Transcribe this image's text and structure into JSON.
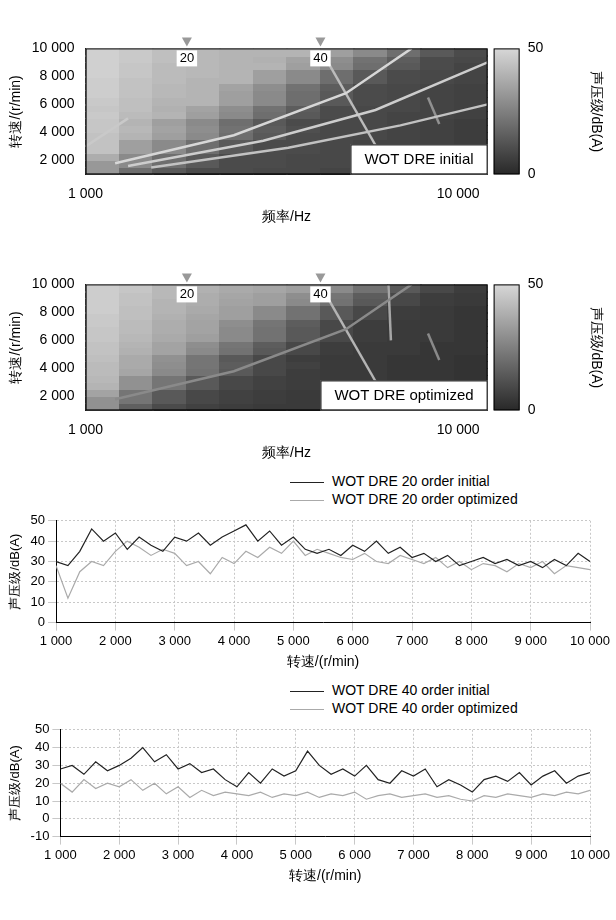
{
  "chart_data": [
    {
      "type": "heatmap",
      "annotation": "WOT DRE initial",
      "x_label": "频率/Hz",
      "y_label": "转速/(r/min)",
      "log": "x",
      "grid": false,
      "xlim": [
        1000,
        12000
      ],
      "xticks": [
        {
          "value": 1000,
          "label": "1 000"
        },
        {
          "value": 10000,
          "label": "10 000"
        }
      ],
      "ylim": [
        1000,
        10000
      ],
      "yticks": [
        {
          "value": 2000,
          "label": "2 000"
        },
        {
          "value": 4000,
          "label": "4 000"
        },
        {
          "value": 6000,
          "label": "6 000"
        },
        {
          "value": 8000,
          "label": "8 000"
        },
        {
          "value": 10000,
          "label": "10 000"
        }
      ],
      "cursors": [
        {
          "value": 1870,
          "label": "20"
        },
        {
          "value": 4270,
          "label": "40"
        }
      ],
      "colorbar": {
        "label": "声压级/dB(A)",
        "range": [
          0,
          50
        ],
        "ticks": [
          0,
          50
        ]
      },
      "freq_edges": [
        1000,
        1230,
        1513,
        1862,
        2290,
        2817,
        3464,
        4261,
        5241,
        6447,
        7930,
        9755,
        12000
      ],
      "rpm_edges": [
        1000,
        1500,
        2000,
        2500,
        3000,
        3500,
        4000,
        4500,
        5000,
        5500,
        6000,
        6500,
        7000,
        7500,
        8000,
        8500,
        9000,
        9500,
        10000
      ],
      "cells": [
        [
          32,
          20,
          14,
          10,
          10,
          9,
          9,
          8,
          8,
          7,
          7,
          6
        ],
        [
          32,
          28,
          20,
          14,
          10,
          10,
          9,
          9,
          8,
          8,
          7,
          6
        ],
        [
          38,
          28,
          20,
          14,
          10,
          10,
          9,
          9,
          8,
          7,
          7,
          6
        ],
        [
          44,
          34,
          28,
          20,
          14,
          10,
          10,
          9,
          8,
          8,
          7,
          6
        ],
        [
          44,
          34,
          28,
          20,
          14,
          10,
          10,
          9,
          8,
          8,
          7,
          6
        ],
        [
          44,
          40,
          34,
          28,
          20,
          14,
          10,
          9,
          9,
          8,
          7,
          6
        ],
        [
          45,
          41,
          35,
          29,
          21,
          15,
          11,
          9,
          9,
          8,
          7,
          6
        ],
        [
          45,
          40,
          34,
          28,
          20,
          14,
          10,
          9,
          9,
          8,
          7,
          6
        ],
        [
          46,
          42,
          40,
          34,
          28,
          20,
          14,
          10,
          9,
          8,
          8,
          7
        ],
        [
          45,
          43,
          39,
          35,
          29,
          21,
          15,
          10,
          9,
          9,
          8,
          7
        ],
        [
          46,
          43,
          40,
          40,
          34,
          28,
          20,
          14,
          10,
          9,
          8,
          7
        ],
        [
          47,
          44,
          41,
          40,
          34,
          28,
          20,
          14,
          10,
          9,
          8,
          7
        ],
        [
          47,
          44,
          41,
          40,
          35,
          29,
          21,
          15,
          10,
          9,
          8,
          7
        ],
        [
          47,
          44,
          42,
          40,
          40,
          34,
          28,
          20,
          14,
          10,
          9,
          8
        ],
        [
          48,
          45,
          42,
          41,
          40,
          34,
          28,
          20,
          14,
          10,
          9,
          8
        ],
        [
          48,
          45,
          42,
          41,
          40,
          40,
          34,
          28,
          20,
          14,
          10,
          8
        ],
        [
          48,
          46,
          43,
          41,
          40,
          39,
          35,
          29,
          21,
          15,
          10,
          9
        ],
        [
          48,
          46,
          43,
          41,
          40,
          40,
          40,
          34,
          28,
          20,
          14,
          10
        ]
      ],
      "order_lines": [
        {
          "x": [
            1200,
            2500,
            5000,
            7500
          ],
          "y": [
            1800,
            3800,
            6800,
            10000
          ],
          "level": 50
        },
        {
          "x": [
            1300,
            3000,
            6000,
            12000
          ],
          "y": [
            1600,
            3400,
            5600,
            9000
          ],
          "level": 47
        },
        {
          "x": [
            1500,
            3500,
            7000,
            12000
          ],
          "y": [
            1500,
            2900,
            4500,
            6000
          ],
          "level": 44
        },
        {
          "x": [
            1000,
            1300
          ],
          "y": [
            3000,
            5000
          ],
          "level": 46
        },
        {
          "x": [
            4300,
            6300
          ],
          "y": [
            9800,
            2100
          ],
          "level": 42
        },
        {
          "x": [
            8300,
            8900
          ],
          "y": [
            6500,
            4600
          ],
          "level": 30
        }
      ]
    },
    {
      "type": "heatmap",
      "annotation": "WOT DRE optimized",
      "x_label": "频率/Hz",
      "y_label": "转速/(r/min)",
      "log": "x",
      "grid": false,
      "xlim": [
        1000,
        12000
      ],
      "xticks": [
        {
          "value": 1000,
          "label": "1 000"
        },
        {
          "value": 10000,
          "label": "10 000"
        }
      ],
      "ylim": [
        1000,
        10000
      ],
      "yticks": [
        {
          "value": 2000,
          "label": "2 000"
        },
        {
          "value": 4000,
          "label": "4 000"
        },
        {
          "value": 6000,
          "label": "6 000"
        },
        {
          "value": 8000,
          "label": "8 000"
        },
        {
          "value": 10000,
          "label": "10 000"
        }
      ],
      "cursors": [
        {
          "value": 1870,
          "label": "20"
        },
        {
          "value": 4270,
          "label": "40"
        }
      ],
      "colorbar": {
        "label": "声压级/dB(A)",
        "range": [
          0,
          50
        ],
        "ticks": [
          0,
          50
        ]
      },
      "freq_edges": [
        1000,
        1230,
        1513,
        1862,
        2290,
        2817,
        3464,
        4261,
        5241,
        6447,
        7930,
        9755,
        12000
      ],
      "rpm_edges": [
        1000,
        1500,
        2000,
        2500,
        3000,
        3500,
        4000,
        4500,
        5000,
        5500,
        6000,
        6500,
        7000,
        7500,
        8000,
        8500,
        9000,
        9500,
        10000
      ],
      "cells": [
        [
          30,
          16,
          10,
          7,
          6,
          5,
          5,
          5,
          4,
          4,
          4,
          3
        ],
        [
          30,
          22,
          14,
          9,
          7,
          6,
          5,
          5,
          4,
          4,
          4,
          3
        ],
        [
          35,
          22,
          14,
          9,
          7,
          6,
          5,
          5,
          4,
          4,
          4,
          3
        ],
        [
          40,
          30,
          22,
          14,
          9,
          7,
          6,
          5,
          5,
          4,
          4,
          3
        ],
        [
          41,
          30,
          22,
          14,
          9,
          7,
          6,
          5,
          5,
          4,
          4,
          3
        ],
        [
          42,
          36,
          28,
          21,
          14,
          9,
          6,
          5,
          5,
          4,
          4,
          3
        ],
        [
          42,
          37,
          29,
          22,
          15,
          9,
          7,
          5,
          5,
          4,
          4,
          3
        ],
        [
          43,
          37,
          30,
          22,
          14,
          9,
          6,
          5,
          5,
          4,
          4,
          3
        ],
        [
          44,
          39,
          35,
          28,
          21,
          14,
          9,
          6,
          5,
          5,
          4,
          4
        ],
        [
          44,
          40,
          35,
          29,
          22,
          15,
          9,
          6,
          5,
          5,
          4,
          4
        ],
        [
          45,
          41,
          37,
          34,
          28,
          21,
          14,
          9,
          6,
          5,
          5,
          4
        ],
        [
          45,
          42,
          38,
          35,
          28,
          21,
          14,
          9,
          6,
          5,
          5,
          4
        ],
        [
          46,
          42,
          38,
          35,
          29,
          22,
          15,
          9,
          6,
          5,
          5,
          4
        ],
        [
          46,
          43,
          39,
          36,
          34,
          28,
          21,
          14,
          9,
          6,
          5,
          4
        ],
        [
          47,
          43,
          40,
          37,
          34,
          28,
          21,
          14,
          9,
          6,
          5,
          4
        ],
        [
          47,
          44,
          40,
          38,
          35,
          34,
          28,
          21,
          14,
          9,
          6,
          5
        ],
        [
          47,
          44,
          41,
          38,
          36,
          34,
          29,
          22,
          15,
          9,
          6,
          5
        ],
        [
          47,
          45,
          41,
          39,
          37,
          36,
          34,
          28,
          21,
          14,
          9,
          6
        ]
      ],
      "order_lines": [
        {
          "x": [
            1200,
            2500,
            5000,
            7500
          ],
          "y": [
            1800,
            3800,
            6800,
            10000
          ],
          "level": 28
        },
        {
          "x": [
            4300,
            6300
          ],
          "y": [
            9800,
            2100
          ],
          "level": 40
        },
        {
          "x": [
            6500,
            6600
          ],
          "y": [
            10000,
            6000
          ],
          "level": 36
        },
        {
          "x": [
            8300,
            8900
          ],
          "y": [
            6500,
            4600
          ],
          "level": 28
        }
      ]
    },
    {
      "type": "line",
      "x_label": "转速/(r/min)",
      "y_label": "声压级/dB(A)",
      "grid": true,
      "legend": "top",
      "xlim": [
        1000,
        10000
      ],
      "xticks": [
        {
          "value": 1000,
          "label": "1 000"
        },
        {
          "value": 2000,
          "label": "2 000"
        },
        {
          "value": 3000,
          "label": "3 000"
        },
        {
          "value": 4000,
          "label": "4 000"
        },
        {
          "value": 5000,
          "label": "5 000"
        },
        {
          "value": 6000,
          "label": "6 000"
        },
        {
          "value": 7000,
          "label": "7 000"
        },
        {
          "value": 8000,
          "label": "8 000"
        },
        {
          "value": 9000,
          "label": "9 000"
        },
        {
          "value": 10000,
          "label": "10 000"
        }
      ],
      "ylim": [
        0,
        50
      ],
      "yticks": [
        0,
        10,
        20,
        30,
        40,
        50
      ],
      "x": [
        1000,
        1200,
        1400,
        1600,
        1800,
        2000,
        2200,
        2400,
        2600,
        2800,
        3000,
        3200,
        3400,
        3600,
        3800,
        4000,
        4200,
        4400,
        4600,
        4800,
        5000,
        5200,
        5400,
        5600,
        5800,
        6000,
        6200,
        6400,
        6600,
        6800,
        7000,
        7200,
        7400,
        7600,
        7800,
        8000,
        8200,
        8400,
        8600,
        8800,
        9000,
        9200,
        9400,
        9600,
        9800,
        10000
      ],
      "series": [
        {
          "name": "WOT DRE 20 order initial",
          "color": "#222222",
          "values": [
            30,
            28,
            35,
            46,
            40,
            44,
            36,
            42,
            38,
            35,
            42,
            40,
            44,
            38,
            42,
            45,
            48,
            40,
            45,
            38,
            42,
            36,
            34,
            36,
            33,
            38,
            35,
            40,
            34,
            37,
            32,
            34,
            30,
            33,
            28,
            30,
            32,
            29,
            31,
            28,
            30,
            27,
            31,
            28,
            34,
            30
          ]
        },
        {
          "name": "WOT DRE 20 order optimized",
          "color": "#aaaaaa",
          "values": [
            28,
            12,
            25,
            30,
            28,
            35,
            40,
            37,
            33,
            36,
            34,
            28,
            30,
            24,
            32,
            29,
            35,
            32,
            37,
            34,
            40,
            33,
            36,
            34,
            32,
            31,
            34,
            30,
            29,
            33,
            31,
            29,
            32,
            27,
            30,
            26,
            29,
            28,
            25,
            29,
            27,
            30,
            24,
            28,
            27,
            26
          ]
        }
      ]
    },
    {
      "type": "line",
      "x_label": "转速/(r/min)",
      "y_label": "声压级/dB(A)",
      "grid": true,
      "legend": "top",
      "xlim": [
        1000,
        10000
      ],
      "xticks": [
        {
          "value": 1000,
          "label": "1 000"
        },
        {
          "value": 2000,
          "label": "2 000"
        },
        {
          "value": 3000,
          "label": "3 000"
        },
        {
          "value": 4000,
          "label": "4 000"
        },
        {
          "value": 5000,
          "label": "5 000"
        },
        {
          "value": 6000,
          "label": "6 000"
        },
        {
          "value": 7000,
          "label": "7 000"
        },
        {
          "value": 8000,
          "label": "8 000"
        },
        {
          "value": 9000,
          "label": "9 000"
        },
        {
          "value": 10000,
          "label": "10 000"
        }
      ],
      "ylim": [
        -10,
        50
      ],
      "yticks": [
        -10,
        0,
        10,
        20,
        30,
        40,
        50
      ],
      "x": [
        1000,
        1200,
        1400,
        1600,
        1800,
        2000,
        2200,
        2400,
        2600,
        2800,
        3000,
        3200,
        3400,
        3600,
        3800,
        4000,
        4200,
        4400,
        4600,
        4800,
        5000,
        5200,
        5400,
        5600,
        5800,
        6000,
        6200,
        6400,
        6600,
        6800,
        7000,
        7200,
        7400,
        7600,
        7800,
        8000,
        8200,
        8400,
        8600,
        8800,
        9000,
        9200,
        9400,
        9600,
        9800,
        10000
      ],
      "series": [
        {
          "name": "WOT DRE 40 order initial",
          "color": "#222222",
          "values": [
            28,
            30,
            25,
            32,
            27,
            30,
            34,
            40,
            32,
            36,
            28,
            31,
            26,
            28,
            22,
            18,
            26,
            20,
            28,
            24,
            27,
            38,
            30,
            25,
            28,
            24,
            30,
            22,
            20,
            27,
            24,
            28,
            18,
            22,
            19,
            15,
            22,
            24,
            21,
            26,
            19,
            24,
            27,
            20,
            24,
            26
          ]
        },
        {
          "name": "WOT DRE 40 order optimized",
          "color": "#aaaaaa",
          "values": [
            20,
            15,
            22,
            17,
            20,
            18,
            22,
            16,
            20,
            14,
            18,
            12,
            16,
            13,
            15,
            14,
            13,
            15,
            12,
            14,
            13,
            15,
            12,
            14,
            13,
            15,
            11,
            13,
            14,
            12,
            13,
            14,
            12,
            13,
            11,
            10,
            13,
            12,
            14,
            13,
            12,
            14,
            13,
            15,
            14,
            16
          ]
        }
      ]
    }
  ]
}
